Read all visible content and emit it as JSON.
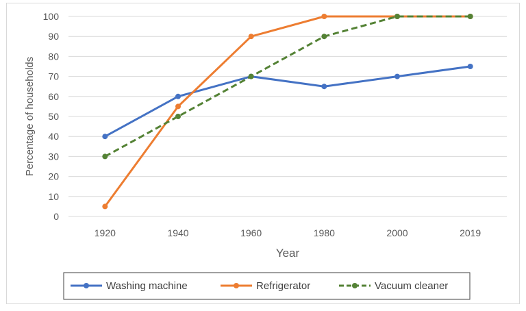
{
  "chart_data": {
    "type": "line",
    "title": "",
    "xlabel": "Year",
    "ylabel": "Percentage of households",
    "categories": [
      "1920",
      "1940",
      "1960",
      "1980",
      "2000",
      "2019"
    ],
    "ylim": [
      0,
      100
    ],
    "yticks": [
      0,
      10,
      20,
      30,
      40,
      50,
      60,
      70,
      80,
      90,
      100
    ],
    "grid": true,
    "legend_position": "bottom",
    "series": [
      {
        "name": "Washing machine",
        "color": "#4472c4",
        "dash": false,
        "values": [
          40,
          60,
          70,
          65,
          70,
          75
        ]
      },
      {
        "name": "Refrigerator",
        "color": "#ed7d31",
        "dash": false,
        "values": [
          5,
          55,
          90,
          100,
          100,
          100
        ]
      },
      {
        "name": "Vacuum cleaner",
        "color": "#548235",
        "dash": true,
        "values": [
          30,
          50,
          70,
          90,
          100,
          100
        ]
      }
    ]
  }
}
